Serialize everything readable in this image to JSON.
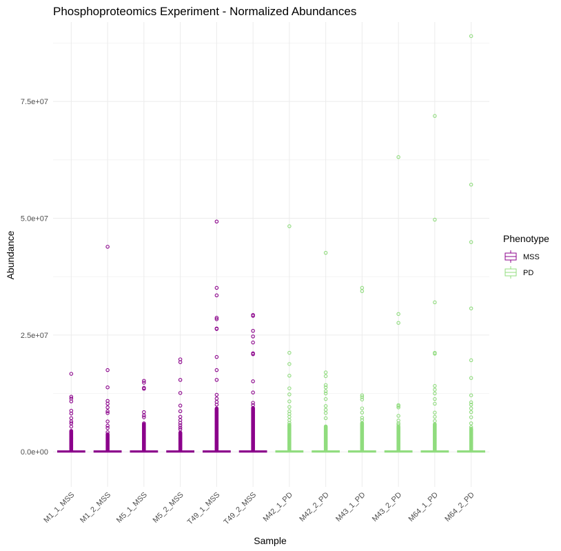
{
  "chart_data": {
    "type": "boxplot",
    "title": "Phosphoproteomics Experiment - Normalized Abundances",
    "xlabel": "Sample",
    "ylabel": "Abundance",
    "ylim": [
      -7500000,
      92000000
    ],
    "y_ticks": [
      0,
      25000000,
      50000000,
      75000000
    ],
    "y_tick_labels": [
      "0.0e+00",
      "2.5e+07",
      "5.0e+07",
      "7.5e+07"
    ],
    "grid": true,
    "legend": {
      "title": "Phenotype",
      "position": "right",
      "entries": [
        {
          "label": "MSS",
          "color": "#8B008B"
        },
        {
          "label": "PD",
          "color": "#90DC7E"
        }
      ]
    },
    "categories": [
      "M1_1_MSS",
      "M1_2_MSS",
      "M5_1_MSS",
      "M5_2_MSS",
      "T49_1_MSS",
      "T49_2_MSS",
      "M42_1_PD",
      "M42_2_PD",
      "M43_1_PD",
      "M43_2_PD",
      "M64_1_PD",
      "M64_2_PD"
    ],
    "phenotype": [
      "MSS",
      "MSS",
      "MSS",
      "MSS",
      "MSS",
      "MSS",
      "PD",
      "PD",
      "PD",
      "PD",
      "PD",
      "PD"
    ],
    "box_stats": [
      {
        "min": 0,
        "q1": 0,
        "median": 50000,
        "q3": 150000,
        "max": 400000
      },
      {
        "min": 0,
        "q1": 0,
        "median": 50000,
        "q3": 150000,
        "max": 400000
      },
      {
        "min": 0,
        "q1": 0,
        "median": 50000,
        "q3": 150000,
        "max": 400000
      },
      {
        "min": 0,
        "q1": 0,
        "median": 50000,
        "q3": 150000,
        "max": 400000
      },
      {
        "min": 0,
        "q1": 0,
        "median": 50000,
        "q3": 150000,
        "max": 400000
      },
      {
        "min": 0,
        "q1": 0,
        "median": 50000,
        "q3": 150000,
        "max": 400000
      },
      {
        "min": 0,
        "q1": 0,
        "median": 50000,
        "q3": 150000,
        "max": 400000
      },
      {
        "min": 0,
        "q1": 0,
        "median": 50000,
        "q3": 150000,
        "max": 400000
      },
      {
        "min": 0,
        "q1": 0,
        "median": 50000,
        "q3": 150000,
        "max": 400000
      },
      {
        "min": 0,
        "q1": 0,
        "median": 50000,
        "q3": 150000,
        "max": 400000
      },
      {
        "min": 0,
        "q1": 0,
        "median": 50000,
        "q3": 150000,
        "max": 400000
      },
      {
        "min": 0,
        "q1": 0,
        "median": 50000,
        "q3": 150000,
        "max": 400000
      }
    ],
    "dense_outlier_max": [
      4500000,
      3800000,
      5800000,
      4200000,
      9300000,
      9400000,
      5800000,
      5500000,
      6200000,
      5500000,
      6000000,
      5000000
    ],
    "outliers": [
      [
        16700000,
        11800000,
        11400000,
        10800000,
        8800000,
        8200000,
        7200000,
        6500000,
        6100000,
        5400000
      ],
      [
        43900000,
        17500000,
        13800000,
        10900000,
        10300000,
        9500000,
        8700000,
        8300000,
        6500000,
        5600000,
        5100000,
        4200000
      ],
      [
        15200000,
        14800000,
        13700000,
        13500000,
        8500000,
        7800000,
        7400000,
        6100000,
        5900000
      ],
      [
        19800000,
        19200000,
        15400000,
        12600000,
        9900000,
        8700000,
        7500000,
        6800000,
        6200000,
        5700000,
        5200000,
        4800000
      ],
      [
        49300000,
        35100000,
        33500000,
        28700000,
        28400000,
        26400000,
        26300000,
        20300000,
        17500000,
        15400000,
        12200000,
        11400000,
        10700000,
        10100000
      ],
      [
        29300000,
        29100000,
        25900000,
        24700000,
        23400000,
        21100000,
        20900000,
        15100000,
        12700000,
        10500000,
        10000000
      ],
      [
        48300000,
        21200000,
        18800000,
        16300000,
        13600000,
        12300000,
        10800000,
        9600000,
        8700000,
        8100000,
        7500000,
        6800000,
        6200000
      ],
      [
        42600000,
        17000000,
        16200000,
        14300000,
        13800000,
        13000000,
        12500000,
        11300000,
        9800000,
        9000000,
        8300000,
        7200000
      ],
      [
        35100000,
        34400000,
        12100000,
        11700000,
        11200000,
        9300000,
        8400000,
        7300000,
        6800000
      ],
      [
        63100000,
        29500000,
        27600000,
        10000000,
        9800000,
        9500000,
        7700000,
        6700000,
        6100000,
        5800000
      ],
      [
        71900000,
        49700000,
        32000000,
        21200000,
        21000000,
        14100000,
        13300000,
        12500000,
        11300000,
        10300000,
        8400000,
        7500000,
        6600000
      ],
      [
        89000000,
        57200000,
        44900000,
        30700000,
        19600000,
        15800000,
        12100000,
        10600000,
        10100000,
        9300000,
        8500000,
        7400000,
        6100000,
        5300000
      ]
    ]
  }
}
